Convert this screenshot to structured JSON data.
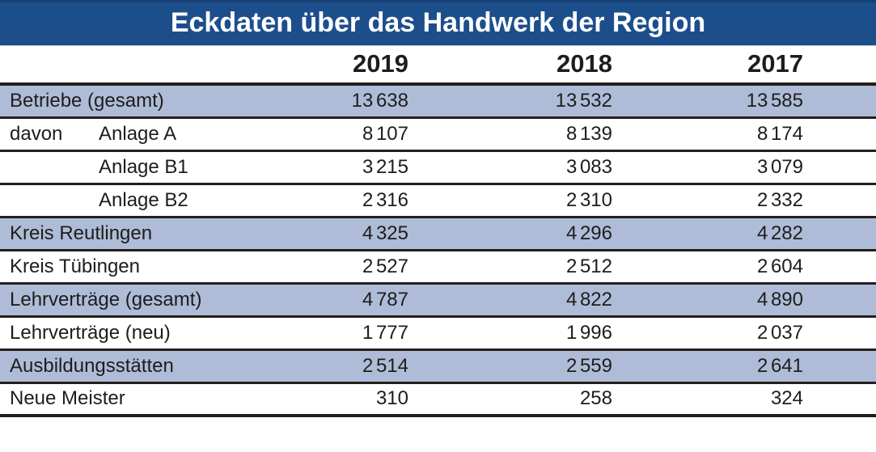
{
  "title": "Eckdaten über das Handwerk der Region",
  "columns": [
    "2019",
    "2018",
    "2017"
  ],
  "table": {
    "rows": [
      {
        "prefix": "",
        "label": "Betriebe (gesamt)",
        "shaded": true,
        "values": [
          "13 638",
          "13 532",
          "13 585"
        ]
      },
      {
        "prefix": "davon",
        "label": "Anlage A",
        "shaded": false,
        "values": [
          "8 107",
          "8 139",
          "8 174"
        ]
      },
      {
        "prefix": "",
        "label": "Anlage B1",
        "shaded": false,
        "values": [
          "3 215",
          "3 083",
          "3 079"
        ]
      },
      {
        "prefix": "",
        "label": "Anlage B2",
        "shaded": false,
        "values": [
          "2 316",
          "2 310",
          "2 332"
        ]
      },
      {
        "prefix": "",
        "label": "Kreis Reutlingen",
        "shaded": true,
        "values": [
          "4 325",
          "4 296",
          "4 282"
        ]
      },
      {
        "prefix": "",
        "label": "Kreis Tübingen",
        "shaded": false,
        "values": [
          "2 527",
          "2 512",
          "2 604"
        ]
      },
      {
        "prefix": "",
        "label": "Lehrverträge (gesamt)",
        "shaded": true,
        "values": [
          "4 787",
          "4 822",
          "4 890"
        ]
      },
      {
        "prefix": "",
        "label": "Lehrverträge (neu)",
        "shaded": false,
        "values": [
          "1 777",
          "1 996",
          "2 037"
        ]
      },
      {
        "prefix": "",
        "label": "Ausbildungsstätten",
        "shaded": true,
        "values": [
          "2 514",
          "2 559",
          "2 641"
        ]
      },
      {
        "prefix": "",
        "label": "Neue Meister",
        "shaded": false,
        "values": [
          "310",
          "258",
          "324"
        ]
      }
    ]
  },
  "colors": {
    "banner_blue": "#1d4e8c",
    "banner_top_edge": "#163f72",
    "row_shade": "#afbcd8",
    "rule": "#221f1b",
    "text": "#1d1d1b",
    "title_text": "#ffffff"
  },
  "chart_data": {
    "type": "table",
    "title": "Eckdaten über das Handwerk der Region",
    "categories": [
      "2019",
      "2018",
      "2017"
    ],
    "series": [
      {
        "name": "Betriebe (gesamt)",
        "values": [
          13638,
          13532,
          13585
        ]
      },
      {
        "name": "davon Anlage A",
        "values": [
          8107,
          8139,
          8174
        ]
      },
      {
        "name": "davon Anlage B1",
        "values": [
          3215,
          3083,
          3079
        ]
      },
      {
        "name": "davon Anlage B2",
        "values": [
          2316,
          2310,
          2332
        ]
      },
      {
        "name": "Kreis Reutlingen",
        "values": [
          4325,
          4296,
          4282
        ]
      },
      {
        "name": "Kreis Tübingen",
        "values": [
          2527,
          2512,
          2604
        ]
      },
      {
        "name": "Lehrverträge (gesamt)",
        "values": [
          4787,
          4822,
          4890
        ]
      },
      {
        "name": "Lehrverträge (neu)",
        "values": [
          1777,
          1996,
          2037
        ]
      },
      {
        "name": "Ausbildungsstätten",
        "values": [
          2514,
          2559,
          2641
        ]
      },
      {
        "name": "Neue Meister",
        "values": [
          310,
          258,
          324
        ]
      }
    ],
    "layout_hints": {
      "shaded_rows": [
        0,
        4,
        6,
        8
      ],
      "value_alignment": "right",
      "thousands_separator": "thin space"
    }
  }
}
